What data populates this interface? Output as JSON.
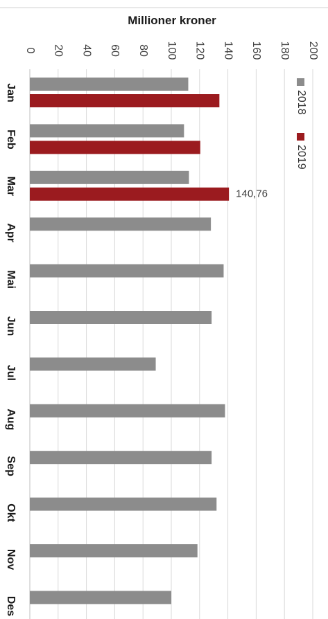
{
  "chart_data": {
    "type": "bar",
    "orientation": "rotated 90° clockwise (values increase downward, categories run left to right)",
    "title": "Millioner kroner",
    "categories": [
      "Jan",
      "Feb",
      "Mar",
      "Apr",
      "Mai",
      "Jun",
      "Jul",
      "Aug",
      "Sep",
      "Okt",
      "Nov",
      "Des"
    ],
    "series": [
      {
        "name": "2018",
        "color": "#8c8c8c",
        "values": [
          112,
          109,
          112.5,
          128,
          137,
          128.5,
          89,
          138,
          128.5,
          132,
          118.5,
          100
        ]
      },
      {
        "name": "2019",
        "color": "#9b1b1f",
        "values": [
          134,
          120.5,
          140.76,
          null,
          null,
          null,
          null,
          null,
          null,
          null,
          null,
          null
        ]
      }
    ],
    "ylim": [
      0,
      200
    ],
    "yticks": [
      0,
      20,
      40,
      60,
      80,
      100,
      120,
      140,
      160,
      180,
      200
    ],
    "data_labels": [
      {
        "series": "2019",
        "category": "Mar",
        "text": "140,76"
      }
    ],
    "grid": true,
    "legend": "top-right"
  }
}
